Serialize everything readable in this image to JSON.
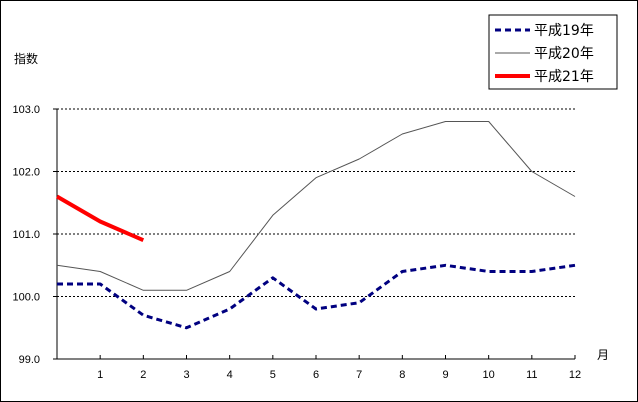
{
  "chart_data": {
    "type": "line",
    "ylabel": "指数",
    "xlabel": "月",
    "ylim": [
      99.0,
      103.0
    ],
    "yticks": [
      "99.0",
      "100.0",
      "101.0",
      "102.0",
      "103.0"
    ],
    "xticks": [
      "1",
      "2",
      "3",
      "4",
      "5",
      "6",
      "7",
      "8",
      "9",
      "10",
      "11",
      "12"
    ],
    "grid": "horizontal dashed",
    "legend_position": "top-right",
    "series": [
      {
        "name": "平成19年",
        "style": "dashed",
        "color": "#000080",
        "x": [
          0,
          1,
          2,
          3,
          4,
          5,
          6,
          7,
          8,
          9,
          10,
          11,
          12
        ],
        "values": [
          100.2,
          100.2,
          99.7,
          99.5,
          99.8,
          100.3,
          99.8,
          99.9,
          100.4,
          100.5,
          100.4,
          100.4,
          100.5
        ]
      },
      {
        "name": "平成20年",
        "style": "thin",
        "color": "#555555",
        "x": [
          0,
          1,
          2,
          3,
          4,
          5,
          6,
          7,
          8,
          9,
          10,
          11,
          12
        ],
        "values": [
          100.5,
          100.4,
          100.1,
          100.1,
          100.4,
          101.3,
          101.9,
          102.2,
          102.6,
          102.8,
          102.8,
          102.0,
          101.6
        ]
      },
      {
        "name": "平成21年",
        "style": "thick",
        "color": "#ff0000",
        "x": [
          0,
          1,
          2
        ],
        "values": [
          101.6,
          101.2,
          100.9
        ]
      }
    ]
  }
}
